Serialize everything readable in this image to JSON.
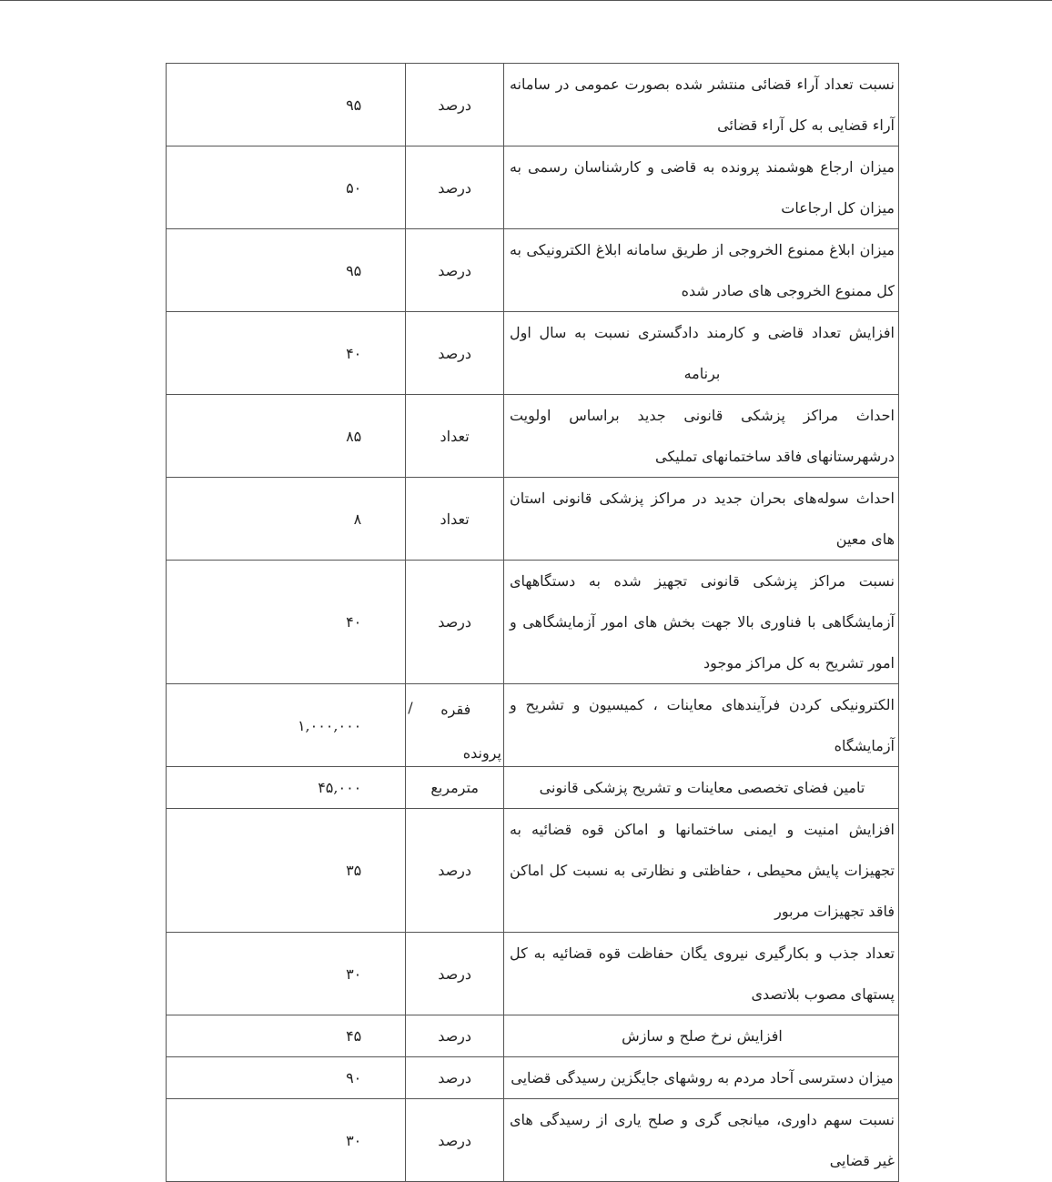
{
  "rows": [
    {
      "description": "نسبت تعداد آراء قضائی منتشر شده بصورت عمومی در سامانه آراء قضایی به کل آراء قضائی",
      "unit": "درصد",
      "value": "۹۵"
    },
    {
      "description": "میزان ارجاع هوشمند پرونده به قاضی و کارشناسان رسمی به میزان کل ارجاعات",
      "unit": "درصد",
      "value": "۵۰"
    },
    {
      "description": "میزان ابلاغ ممنوع الخروجی از طریق سامانه ابلاغ الکترونیکی به کل ممنوع الخروجی های صادر شده",
      "unit": "درصد",
      "value": "۹۵"
    },
    {
      "description": "افزایش تعداد قاضی و کارمند دادگستری نسبت به سال اول برنامه",
      "unit": "درصد",
      "value": "۴۰"
    },
    {
      "description": "احداث مراکز پزشکی قانونی جدید براساس اولویت درشهرستانهای فاقد ساختمانهای تملیکی",
      "unit": "تعداد",
      "value": "۸۵"
    },
    {
      "description": "احداث سوله‌های بحران جدید در مراکز پزشکی قانونی استان های معین",
      "unit": "تعداد",
      "value": "۸"
    },
    {
      "description": "نسبت مراکز پزشکی قانونی تجهیز شده به دستگاههای آزمایشگاهی با فناوری بالا جهت بخش های امور آزمایشگاهی و امور تشریح به کل مراکز موجود",
      "unit": "درصد",
      "value": "۴۰"
    },
    {
      "description": "الکترونیکی کردن فرآیندهای معاینات ، کمیسیون و تشریح و آزمایشگاه",
      "unit": "فقره / پرونده",
      "unit_parts": [
        "فقره",
        "/",
        "پرونده"
      ],
      "value": "۱,۰۰۰,۰۰۰"
    },
    {
      "description": "تامین فضای تخصصی معاینات و تشریح پزشکی قانونی",
      "unit": "مترمربع",
      "value": "۴۵,۰۰۰"
    },
    {
      "description": "افزایش امنیت و ایمنی ساختمانها و اماکن قوه قضائیه به تجهیزات پایش محیطی ، حفاظتی و نظارتی به نسبت کل اماکن فاقد  تجهیزات مربور",
      "unit": "درصد",
      "value": "۳۵"
    },
    {
      "description": "تعداد جذب و بکارگیری نیروی یگان حفاظت قوه قضائیه به کل پستهای مصوب بلاتصدی",
      "unit": "درصد",
      "value": "۳۰"
    },
    {
      "description": "افزایش نرخ صلح و سازش",
      "unit": "درصد",
      "value": "۴۵"
    },
    {
      "description": "میزان دسترسی آحاد مردم به روشهای جایگزین رسیدگی قضایی",
      "unit": "درصد",
      "value": "۹۰"
    },
    {
      "description": "نسبت سهم داوری، میانجی گری و صلح یاری از رسیدگی های غیر قضایی",
      "unit": "درصد",
      "value": "۳۰"
    }
  ]
}
